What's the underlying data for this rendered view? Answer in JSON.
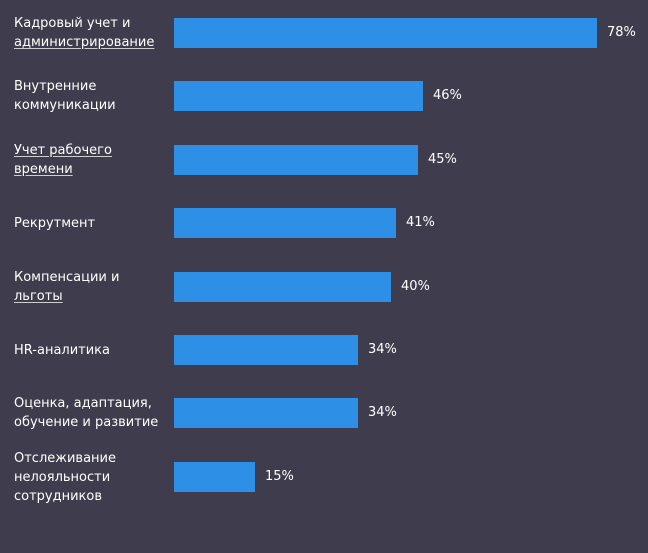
{
  "chart_data": {
    "type": "bar",
    "orientation": "horizontal",
    "bar_color": "#2d8fe6",
    "background_color": "#3f3d4d",
    "categories": [
      {
        "lines": [
          {
            "text": "Кадровый учет и",
            "link": false
          },
          {
            "text": "администрирование",
            "link": true
          }
        ]
      },
      {
        "lines": [
          {
            "text": "Внутренние",
            "link": false
          },
          {
            "text": "коммуникации",
            "link": false
          }
        ]
      },
      {
        "lines": [
          {
            "text": "Учет рабочего",
            "link": true
          },
          {
            "text": "времени",
            "link": true
          }
        ]
      },
      {
        "lines": [
          {
            "text": "Рекрутмент",
            "link": false
          }
        ]
      },
      {
        "lines": [
          {
            "text": "Компенсации и",
            "link": false
          },
          {
            "text": "льготы",
            "link": true
          }
        ]
      },
      {
        "lines": [
          {
            "text": "HR-аналитика",
            "link": false
          }
        ]
      },
      {
        "lines": [
          {
            "text": "Оценка, адаптация,",
            "link": false
          },
          {
            "text": "обучение и развитие",
            "link": false
          }
        ]
      },
      {
        "lines": [
          {
            "text": "Отслеживание",
            "link": false
          },
          {
            "text": "нелояльности",
            "link": false
          },
          {
            "text": "сотрудников",
            "link": false
          }
        ]
      }
    ],
    "values": [
      78,
      46,
      45,
      41,
      40,
      34,
      34,
      15
    ],
    "value_labels": [
      "78%",
      "46%",
      "45%",
      "41%",
      "40%",
      "34%",
      "34%",
      "15%"
    ],
    "unit": "%",
    "xlim": [
      0,
      78
    ],
    "grid": false,
    "legend": "none"
  }
}
